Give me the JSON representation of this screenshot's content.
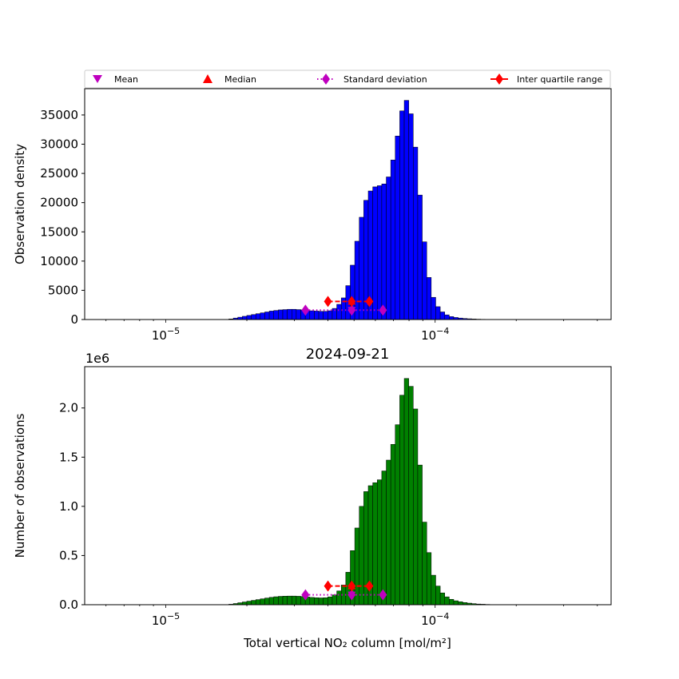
{
  "chart_data": [
    {
      "type": "bar",
      "title": "",
      "xlabel": "",
      "ylabel": "Observation density",
      "x_scale": "log",
      "xlim": [
        5e-06,
        0.00045
      ],
      "ylim": [
        0,
        39500
      ],
      "yticks": [
        0,
        5000,
        10000,
        15000,
        20000,
        25000,
        30000,
        35000
      ],
      "xticks": [
        {
          "value": 1e-05,
          "mantissa": "10",
          "exp": "−5"
        },
        {
          "value": 0.0001,
          "mantissa": "10",
          "exp": "−4"
        }
      ],
      "bar_color": "#0000ff",
      "bar_edge_color": "#000000",
      "bin_log_start": -5.1,
      "bin_log_step": 0.0167,
      "values": [
        0,
        0,
        0,
        0,
        0,
        0,
        0,
        0,
        0,
        0,
        0,
        0,
        0,
        0,
        0,
        0,
        0,
        0,
        0,
        0,
        100,
        250,
        400,
        550,
        700,
        850,
        1000,
        1150,
        1300,
        1450,
        1550,
        1650,
        1700,
        1750,
        1750,
        1700,
        1650,
        1550,
        1500,
        1450,
        1400,
        1400,
        1500,
        1900,
        2600,
        3700,
        5800,
        9300,
        13400,
        17500,
        20400,
        22000,
        22700,
        22900,
        23200,
        24400,
        27300,
        31400,
        35700,
        37500,
        35200,
        29500,
        21300,
        13300,
        7200,
        3800,
        2200,
        1300,
        800,
        500,
        350,
        250,
        180,
        130,
        90,
        60,
        40,
        25,
        15,
        10,
        5,
        0,
        0,
        0,
        0,
        0,
        0,
        0,
        0,
        0,
        0,
        0,
        0,
        0,
        0,
        0,
        0
      ],
      "markers": {
        "mean": {
          "x": 4.9e-05,
          "y": 1600
        },
        "median": {
          "x": 4.9e-05,
          "y": 3100
        },
        "std": {
          "x": [
            3.3e-05,
            6.4e-05
          ],
          "y": 1600
        },
        "iqr": {
          "x": [
            4e-05,
            5.7e-05
          ],
          "y": 3100
        }
      }
    },
    {
      "type": "bar",
      "title": "2024-09-21",
      "xlabel": "Total vertical NO₂ column [mol/m²]",
      "ylabel": "Number of observations",
      "y_offset_label": "1e6",
      "x_scale": "log",
      "xlim": [
        5e-06,
        0.00045
      ],
      "ylim": [
        0,
        2.42
      ],
      "yticks": [
        {
          "value": 0.0,
          "label": "0.0"
        },
        {
          "value": 0.5,
          "label": "0.5"
        },
        {
          "value": 1.0,
          "label": "1.0"
        },
        {
          "value": 1.5,
          "label": "1.5"
        },
        {
          "value": 2.0,
          "label": "2.0"
        }
      ],
      "xticks": [
        {
          "value": 1e-05,
          "mantissa": "10",
          "exp": "−5"
        },
        {
          "value": 0.0001,
          "mantissa": "10",
          "exp": "−4"
        }
      ],
      "bar_color": "#008000",
      "bar_edge_color": "#000000",
      "bin_log_start": -5.1,
      "bin_log_step": 0.0167,
      "values": [
        0,
        0,
        0,
        0,
        0,
        0,
        0,
        0,
        0,
        0,
        0,
        0,
        0,
        0,
        0,
        0,
        0,
        0,
        0,
        0,
        0.005,
        0.012,
        0.02,
        0.028,
        0.036,
        0.044,
        0.052,
        0.06,
        0.068,
        0.075,
        0.081,
        0.085,
        0.087,
        0.088,
        0.088,
        0.086,
        0.083,
        0.078,
        0.074,
        0.071,
        0.069,
        0.071,
        0.08,
        0.1,
        0.14,
        0.2,
        0.33,
        0.55,
        0.78,
        1.0,
        1.15,
        1.21,
        1.24,
        1.27,
        1.36,
        1.47,
        1.63,
        1.83,
        2.13,
        2.3,
        2.22,
        1.99,
        1.42,
        0.84,
        0.53,
        0.3,
        0.19,
        0.12,
        0.08,
        0.055,
        0.04,
        0.03,
        0.022,
        0.016,
        0.011,
        0.007,
        0.005,
        0.003,
        0.002,
        0.001,
        0.0005,
        0,
        0,
        0,
        0,
        0,
        0,
        0,
        0,
        0,
        0,
        0,
        0,
        0,
        0,
        0,
        0
      ],
      "markers": {
        "mean": {
          "x": 4.9e-05,
          "y": 0.1
        },
        "median": {
          "x": 4.9e-05,
          "y": 0.19
        },
        "std": {
          "x": [
            3.3e-05,
            6.4e-05
          ],
          "y": 0.1
        },
        "iqr": {
          "x": [
            4e-05,
            5.7e-05
          ],
          "y": 0.19
        }
      }
    }
  ],
  "legend": {
    "placement": "top, spanning width",
    "items": [
      {
        "label": "Mean",
        "marker": "triangle-down",
        "color": "#bf00bf"
      },
      {
        "label": "Median",
        "marker": "triangle-up",
        "color": "#ff0000"
      },
      {
        "label": "Standard deviation",
        "marker": "diamond-dotted-line",
        "color": "#bf00bf"
      },
      {
        "label": "Inter quartile range",
        "marker": "diamond-solid-line",
        "color": "#ff0000"
      }
    ]
  },
  "colors": {
    "mean": "#bf00bf",
    "median": "#ff0000",
    "std": "#bf00bf",
    "iqr": "#ff0000"
  }
}
